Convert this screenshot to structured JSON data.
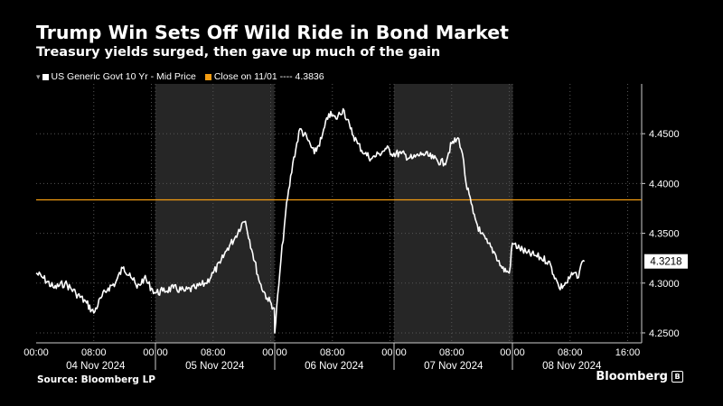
{
  "header": {
    "title": "Trump Win Sets Off Wild Ride in Bond Market",
    "subtitle": "Treasury yields surged, then gave up much of the gain"
  },
  "legend": {
    "items": [
      {
        "label": "US Generic Govt 10 Yr - Mid Price",
        "color": "#ffffff"
      },
      {
        "label": "Close on 11/01 ---- 4.3836",
        "color": "#f39c12"
      }
    ]
  },
  "footer": {
    "source": "Source: Bloomberg LP",
    "brand": "Bloomberg",
    "brand_mark": "B"
  },
  "chart_data": {
    "type": "line",
    "title": "Trump Win Sets Off Wild Ride in Bond Market",
    "subtitle": "Treasury yields surged, then gave up much of the gain",
    "xlabel": "",
    "ylabel": "",
    "x_range_hours": [
      0,
      16.5
    ],
    "x_tick_labels": [
      "00:00",
      "08:00",
      "00:00",
      "08:00",
      "00:00",
      "08:00",
      "00:00",
      "08:00",
      "00:00",
      "08:00",
      "16:00"
    ],
    "x_day_labels": [
      "04 Nov 2024",
      "05 Nov 2024",
      "06 Nov 2024",
      "07 Nov 2024",
      "08 Nov 2024"
    ],
    "ylim": [
      4.24,
      4.5
    ],
    "y_ticks": [
      4.25,
      4.3,
      4.35,
      4.4,
      4.45
    ],
    "y_tick_labels": [
      "4.2500",
      "4.3000",
      "4.3500",
      "4.4000",
      "4.4500"
    ],
    "grid": true,
    "shaded_days": [
      "05 Nov 2024",
      "07 Nov 2024"
    ],
    "reference_line": {
      "label": "Close on 11/01",
      "value": 4.3836,
      "color": "#f39c12"
    },
    "last_value_label": "4.3218",
    "last_value": 4.3218,
    "series": [
      {
        "name": "US Generic Govt 10 Yr - Mid Price",
        "color": "#ffffff",
        "points": [
          [
            "04 Nov 2024",
            0.0,
            4.31
          ],
          [
            "04 Nov 2024",
            1.0,
            4.305
          ],
          [
            "04 Nov 2024",
            2.5,
            4.295
          ],
          [
            "04 Nov 2024",
            4.0,
            4.3
          ],
          [
            "04 Nov 2024",
            5.5,
            4.29
          ],
          [
            "04 Nov 2024",
            7.0,
            4.28
          ],
          [
            "04 Nov 2024",
            8.0,
            4.27
          ],
          [
            "04 Nov 2024",
            9.0,
            4.285
          ],
          [
            "04 Nov 2024",
            10.0,
            4.295
          ],
          [
            "04 Nov 2024",
            11.0,
            4.3
          ],
          [
            "04 Nov 2024",
            12.0,
            4.315
          ],
          [
            "04 Nov 2024",
            13.0,
            4.31
          ],
          [
            "04 Nov 2024",
            14.0,
            4.295
          ],
          [
            "04 Nov 2024",
            15.0,
            4.305
          ],
          [
            "04 Nov 2024",
            16.0,
            4.295
          ],
          [
            "05 Nov 2024",
            0.0,
            4.29
          ],
          [
            "05 Nov 2024",
            1.0,
            4.292
          ],
          [
            "05 Nov 2024",
            2.5,
            4.295
          ],
          [
            "05 Nov 2024",
            4.0,
            4.292
          ],
          [
            "05 Nov 2024",
            5.5,
            4.295
          ],
          [
            "05 Nov 2024",
            7.0,
            4.3
          ],
          [
            "05 Nov 2024",
            8.0,
            4.31
          ],
          [
            "05 Nov 2024",
            9.0,
            4.32
          ],
          [
            "05 Nov 2024",
            10.0,
            4.335
          ],
          [
            "05 Nov 2024",
            11.0,
            4.345
          ],
          [
            "05 Nov 2024",
            12.0,
            4.36
          ],
          [
            "05 Nov 2024",
            12.5,
            4.362
          ],
          [
            "05 Nov 2024",
            13.5,
            4.33
          ],
          [
            "05 Nov 2024",
            14.5,
            4.3
          ],
          [
            "05 Nov 2024",
            15.5,
            4.285
          ],
          [
            "05 Nov 2024",
            16.5,
            4.275
          ],
          [
            "06 Nov 2024",
            0.0,
            4.25
          ],
          [
            "06 Nov 2024",
            0.7,
            4.31
          ],
          [
            "06 Nov 2024",
            1.5,
            4.37
          ],
          [
            "06 Nov 2024",
            2.5,
            4.42
          ],
          [
            "06 Nov 2024",
            3.5,
            4.455
          ],
          [
            "06 Nov 2024",
            4.5,
            4.445
          ],
          [
            "06 Nov 2024",
            5.5,
            4.43
          ],
          [
            "06 Nov 2024",
            6.5,
            4.445
          ],
          [
            "06 Nov 2024",
            7.5,
            4.47
          ],
          [
            "06 Nov 2024",
            8.5,
            4.465
          ],
          [
            "06 Nov 2024",
            9.5,
            4.475
          ],
          [
            "06 Nov 2024",
            10.5,
            4.455
          ],
          [
            "06 Nov 2024",
            11.5,
            4.44
          ],
          [
            "06 Nov 2024",
            12.5,
            4.43
          ],
          [
            "06 Nov 2024",
            13.5,
            4.425
          ],
          [
            "06 Nov 2024",
            14.5,
            4.43
          ],
          [
            "06 Nov 2024",
            15.5,
            4.435
          ],
          [
            "06 Nov 2024",
            16.5,
            4.43
          ],
          [
            "07 Nov 2024",
            0.0,
            4.43
          ],
          [
            "07 Nov 2024",
            1.0,
            4.43
          ],
          [
            "07 Nov 2024",
            2.5,
            4.425
          ],
          [
            "07 Nov 2024",
            4.0,
            4.43
          ],
          [
            "07 Nov 2024",
            5.5,
            4.425
          ],
          [
            "07 Nov 2024",
            7.0,
            4.42
          ],
          [
            "07 Nov 2024",
            8.0,
            4.44
          ],
          [
            "07 Nov 2024",
            9.0,
            4.445
          ],
          [
            "07 Nov 2024",
            9.5,
            4.43
          ],
          [
            "07 Nov 2024",
            10.0,
            4.4
          ],
          [
            "07 Nov 2024",
            11.0,
            4.37
          ],
          [
            "07 Nov 2024",
            12.0,
            4.35
          ],
          [
            "07 Nov 2024",
            13.0,
            4.34
          ],
          [
            "07 Nov 2024",
            14.0,
            4.33
          ],
          [
            "07 Nov 2024",
            15.0,
            4.315
          ],
          [
            "07 Nov 2024",
            16.0,
            4.31
          ],
          [
            "08 Nov 2024",
            0.0,
            4.34
          ],
          [
            "08 Nov 2024",
            1.0,
            4.335
          ],
          [
            "08 Nov 2024",
            2.0,
            4.33
          ],
          [
            "08 Nov 2024",
            3.0,
            4.328
          ],
          [
            "08 Nov 2024",
            4.0,
            4.325
          ],
          [
            "08 Nov 2024",
            5.0,
            4.322
          ],
          [
            "08 Nov 2024",
            6.0,
            4.305
          ],
          [
            "08 Nov 2024",
            6.5,
            4.295
          ],
          [
            "08 Nov 2024",
            7.5,
            4.3
          ],
          [
            "08 Nov 2024",
            8.5,
            4.31
          ],
          [
            "08 Nov 2024",
            9.0,
            4.305
          ],
          [
            "08 Nov 2024",
            9.5,
            4.318
          ],
          [
            "08 Nov 2024",
            10.0,
            4.3218
          ]
        ]
      }
    ]
  }
}
